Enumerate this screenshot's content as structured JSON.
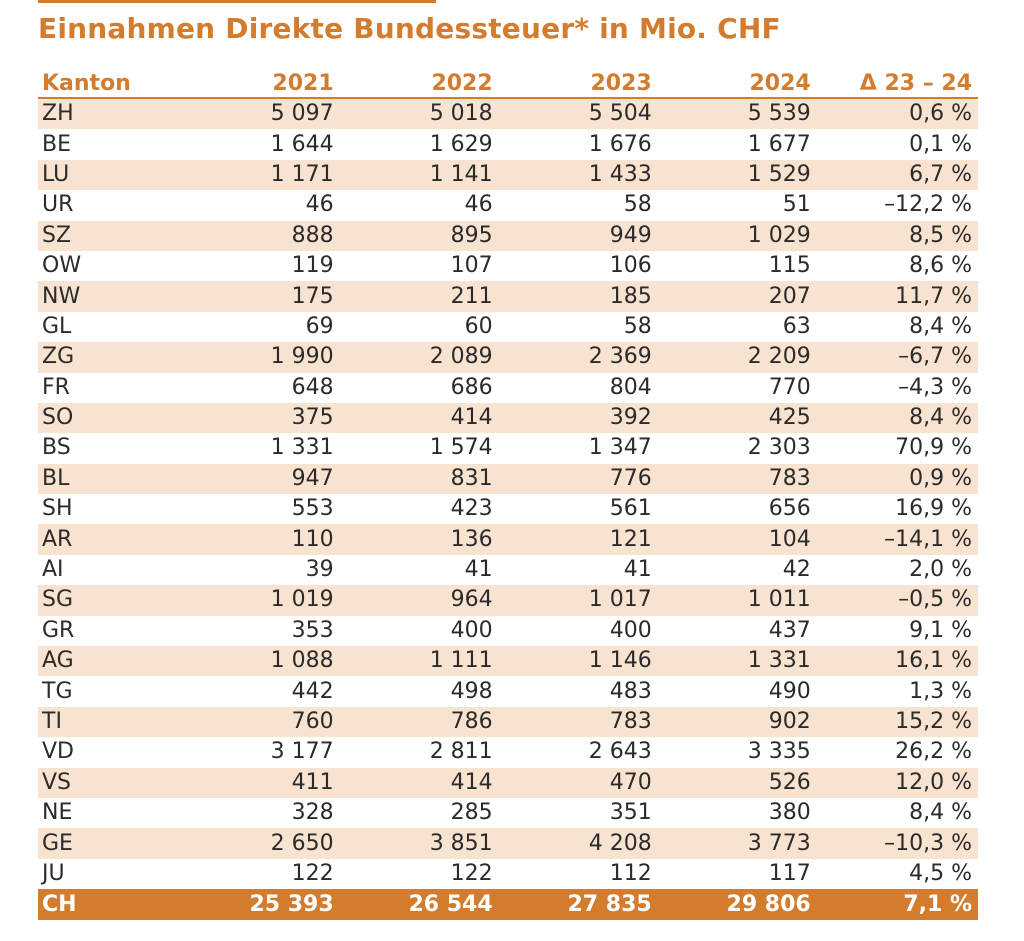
{
  "title": "Einnahmen Direkte Bundessteuer* in Mio. CHF",
  "colors": {
    "accent": "#d37c2e",
    "row_shade": "#f8e2d0"
  },
  "chart_data": {
    "type": "table",
    "columns": [
      "Kanton",
      "2021",
      "2022",
      "2023",
      "2024",
      "Δ 23 – 24"
    ],
    "rows": [
      [
        "ZH",
        "5 097",
        "5 018",
        "5 504",
        "5 539",
        "0,6 %"
      ],
      [
        "BE",
        "1 644",
        "1 629",
        "1 676",
        "1 677",
        "0,1 %"
      ],
      [
        "LU",
        "1 171",
        "1 141",
        "1 433",
        "1 529",
        "6,7 %"
      ],
      [
        "UR",
        "46",
        "46",
        "58",
        "51",
        "–12,2 %"
      ],
      [
        "SZ",
        "888",
        "895",
        "949",
        "1 029",
        "8,5 %"
      ],
      [
        "OW",
        "119",
        "107",
        "106",
        "115",
        "8,6 %"
      ],
      [
        "NW",
        "175",
        "211",
        "185",
        "207",
        "11,7 %"
      ],
      [
        "GL",
        "69",
        "60",
        "58",
        "63",
        "8,4 %"
      ],
      [
        "ZG",
        "1 990",
        "2 089",
        "2 369",
        "2 209",
        "–6,7 %"
      ],
      [
        "FR",
        "648",
        "686",
        "804",
        "770",
        "–4,3 %"
      ],
      [
        "SO",
        "375",
        "414",
        "392",
        "425",
        "8,4 %"
      ],
      [
        "BS",
        "1 331",
        "1 574",
        "1 347",
        "2 303",
        "70,9 %"
      ],
      [
        "BL",
        "947",
        "831",
        "776",
        "783",
        "0,9 %"
      ],
      [
        "SH",
        "553",
        "423",
        "561",
        "656",
        "16,9 %"
      ],
      [
        "AR",
        "110",
        "136",
        "121",
        "104",
        "–14,1 %"
      ],
      [
        "AI",
        "39",
        "41",
        "41",
        "42",
        "2,0 %"
      ],
      [
        "SG",
        "1 019",
        "964",
        "1 017",
        "1 011",
        "–0,5 %"
      ],
      [
        "GR",
        "353",
        "400",
        "400",
        "437",
        "9,1 %"
      ],
      [
        "AG",
        "1 088",
        "1 111",
        "1 146",
        "1 331",
        "16,1 %"
      ],
      [
        "TG",
        "442",
        "498",
        "483",
        "490",
        "1,3 %"
      ],
      [
        "TI",
        "760",
        "786",
        "783",
        "902",
        "15,2 %"
      ],
      [
        "VD",
        "3 177",
        "2 811",
        "2 643",
        "3 335",
        "26,2 %"
      ],
      [
        "VS",
        "411",
        "414",
        "470",
        "526",
        "12,0 %"
      ],
      [
        "NE",
        "328",
        "285",
        "351",
        "380",
        "8,4 %"
      ],
      [
        "GE",
        "2 650",
        "3 851",
        "4 208",
        "3 773",
        "–10,3 %"
      ],
      [
        "JU",
        "122",
        "122",
        "112",
        "117",
        "4,5 %"
      ]
    ],
    "total": [
      "CH",
      "25 393",
      "26 544",
      "27 835",
      "29 806",
      "7,1 %"
    ]
  }
}
